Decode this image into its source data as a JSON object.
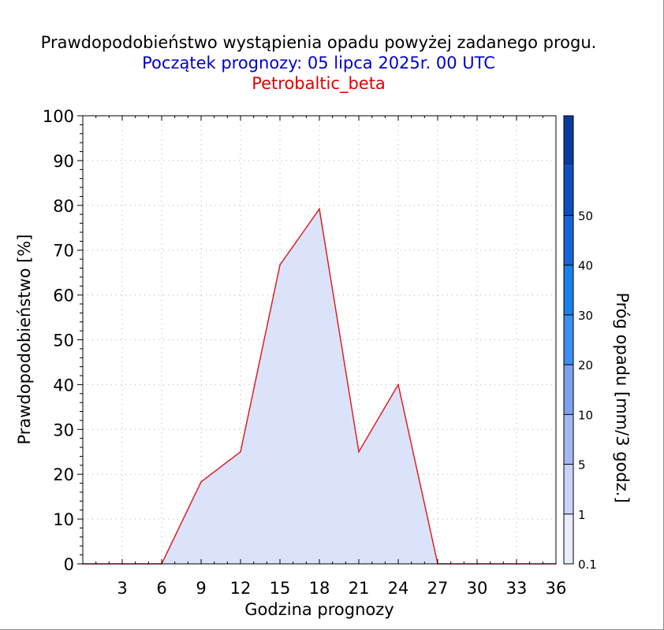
{
  "chart_data": {
    "type": "area",
    "title": "Prawdopodobieństwo wystąpienia opadu powyżej zadanego progu.",
    "subtitle": "Początek prognozy: 05 lipca 2025r. 00 UTC",
    "model": "Petrobaltic_beta",
    "xlabel": "Godzina prognozy",
    "ylabel": "Prawdopodobieństwo [%]",
    "y2label": "Próg opadu [mm/3 godz.]",
    "xlim": [
      0,
      36
    ],
    "ylim": [
      0,
      100
    ],
    "x_ticks": [
      3,
      6,
      9,
      12,
      15,
      18,
      21,
      24,
      27,
      30,
      33,
      36
    ],
    "y_ticks": [
      0,
      10,
      20,
      30,
      40,
      50,
      60,
      70,
      80,
      90,
      100
    ],
    "grid": true,
    "series": [
      {
        "x": [
          0,
          3,
          6,
          9,
          12,
          15,
          18,
          21,
          24,
          27,
          30,
          33,
          36
        ],
        "values": [
          0,
          0,
          0,
          18.3,
          25,
          66.7,
          79.2,
          25,
          40,
          0,
          0,
          0,
          0
        ],
        "color": "#e02020",
        "fill": "#dbe3fb"
      }
    ],
    "colorbar": {
      "labels": [
        "0.1",
        "1",
        "5",
        "10",
        "20",
        "30",
        "40",
        "50"
      ],
      "colors": [
        "#e9edfc",
        "#c9d3f8",
        "#a5b7f3",
        "#7ea0ee",
        "#3c8ff0",
        "#1a80ea",
        "#1565d6",
        "#0d4fbf",
        "#0a3a9e"
      ]
    },
    "colors": {
      "title": "#000000",
      "subtitle": "#0000cc",
      "model": "#e00000"
    }
  }
}
